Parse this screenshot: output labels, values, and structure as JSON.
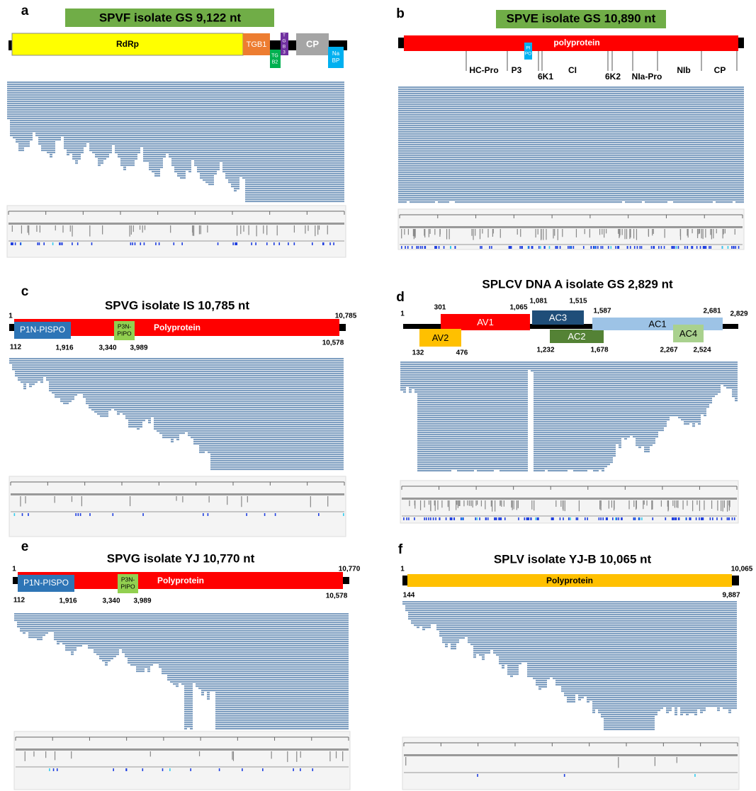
{
  "panels": [
    {
      "letter": "a",
      "title": "SPVF isolate GS 9,122 nt",
      "genes": [
        "RdRp",
        "TGB1",
        [
          "TG",
          "B2"
        ],
        [
          "T",
          "G",
          "B",
          "3"
        ],
        "CP",
        [
          "Na",
          "BP"
        ]
      ]
    },
    {
      "letter": "b",
      "title": "SPVE isolate GS 10,890 nt",
      "genes": [
        "polyprotein",
        [
          "PI",
          "PO"
        ]
      ],
      "labels": [
        "HC-Pro",
        "P3",
        "6K1",
        "CI",
        "6K2",
        "NIa-Pro",
        "NIb",
        "CP"
      ]
    },
    {
      "letter": "c",
      "title": "SPVG isolate IS 10,785 nt",
      "genes": [
        "P1N-PISPO",
        [
          "P3N-",
          "PIPO"
        ],
        "Polyprotein"
      ],
      "numbers": [
        "1",
        "10,785",
        "112",
        "1,916",
        "3,340",
        "3,989",
        "10,578"
      ]
    },
    {
      "letter": "d",
      "title": "SPLCV DNA A isolate GS 2,829 nt",
      "genes": [
        "AV1",
        "AV2",
        "AC3",
        "AC2",
        "AC1",
        "AC4"
      ],
      "numbers": [
        "1",
        "301",
        "1,065",
        "1,081",
        "1,515",
        "1,587",
        "2,681",
        "2,829",
        "132",
        "476",
        "1,232",
        "1,678",
        "2,267",
        "2,524"
      ]
    },
    {
      "letter": "e",
      "title": "SPVG isolate YJ 10,770 nt",
      "genes": [
        "P1N-PISPO",
        [
          "P3N-",
          "PIPO"
        ],
        "Polyprotein"
      ],
      "numbers": [
        "1",
        "10,770",
        "112",
        "1,916",
        "3,340",
        "3,989",
        "10,578"
      ]
    },
    {
      "letter": "f",
      "title": "SPLV isolate YJ-B 10,065 nt",
      "genes": [
        "Polyprotein"
      ],
      "numbers": [
        "1",
        "10,065",
        "144",
        "9,887"
      ]
    }
  ]
}
